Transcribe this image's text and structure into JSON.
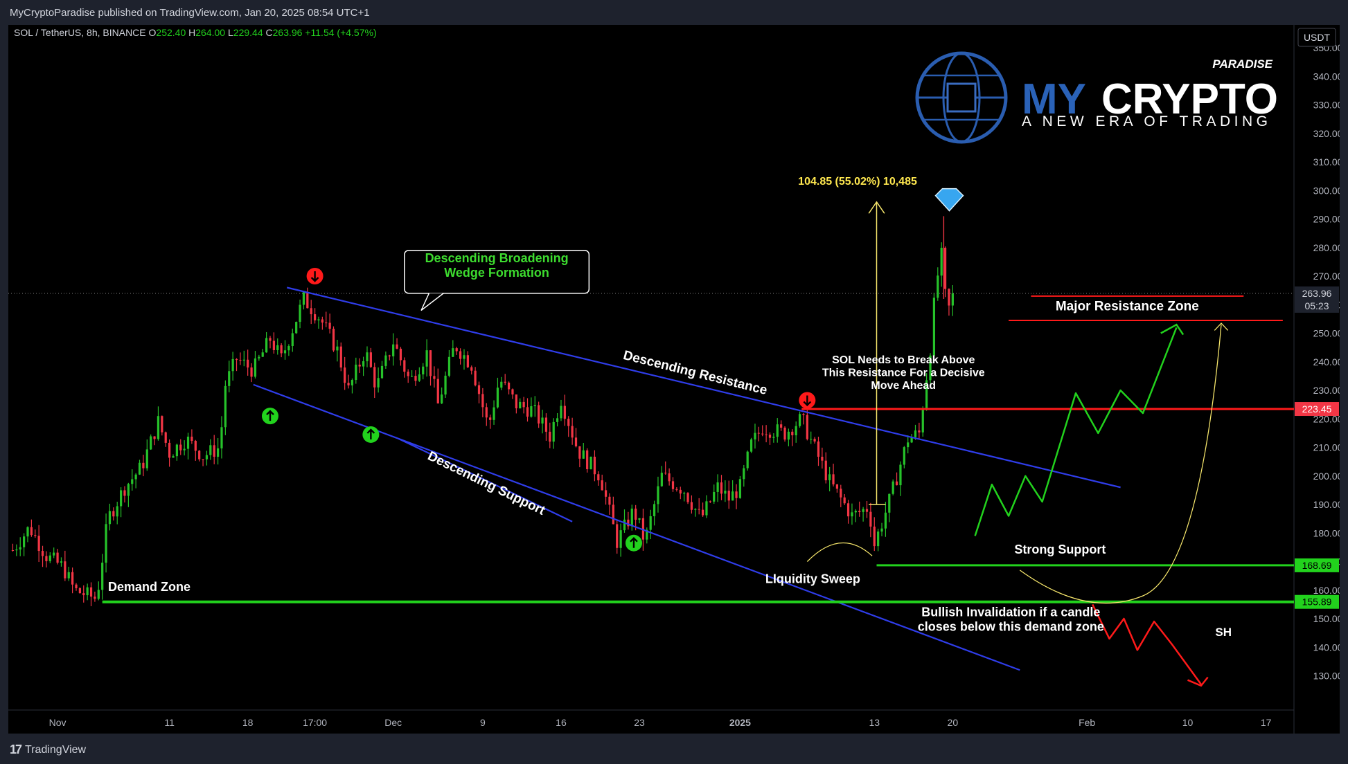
{
  "header": {
    "published": "MyCryptoParadise published on TradingView.com, Jan 20, 2025 08:54 UTC+1"
  },
  "footer": {
    "brand": "TradingView"
  },
  "symbol": {
    "name": "SOL / TetherUS, 8h, BINANCE",
    "o_label": "O",
    "o_value": "252.40",
    "h_label": "H",
    "h_value": "264.00",
    "l_label": "L",
    "l_value": "229.44",
    "c_label": "C",
    "c_value": "263.96",
    "change": "+11.54 (+4.57%)"
  },
  "logo": {
    "top": "PARADISE",
    "brand_a": "MY",
    "brand_b": "CRYPTO",
    "tagline": "A NEW ERA OF TRADING"
  },
  "currency": "USDT",
  "price_tags": {
    "current": "263.96",
    "countdown": "05:23",
    "resistance": "223.45",
    "support": "168.69",
    "demand": "155.89"
  },
  "annotations": {
    "wedge_line1": "Descending Broadening",
    "wedge_line2": "Wedge Formation",
    "resistance_label": "Descending Resistance",
    "support_label": "Descending Support",
    "measure": "104.85 (55.02%) 10,485",
    "major_zone": "Major Resistance Zone",
    "sol_line1": "SOL Needs to Break Above",
    "sol_line2": "This Resistance For a Decisive",
    "sol_line3": "Move Ahead",
    "strong_support": "Strong Support",
    "liquidity": "LIquidity Sweep",
    "demand_zone": "Demand Zone",
    "invalid_line1": "Bullish Invalidation if a candle",
    "invalid_line2": "closes below this demand zone",
    "sh": "SH"
  },
  "chart_data": {
    "type": "candlestick",
    "title": "SOL / TetherUS, 8h, BINANCE",
    "y_ticks": [
      130,
      140,
      150,
      160,
      170,
      180,
      190,
      200,
      210,
      220,
      230,
      240,
      250,
      260,
      270,
      280,
      290,
      300,
      310,
      320,
      330,
      340,
      350
    ],
    "y_tick_labels": [
      "130.00",
      "140.00",
      "150.00",
      "160.00",
      "170.00",
      "180.00",
      "190.00",
      "200.00",
      "210.00",
      "220.00",
      "230.00",
      "240.00",
      "250.00",
      "260.00",
      "270.00",
      "280.00",
      "290.00",
      "300.00",
      "310.00",
      "320.00",
      "330.00",
      "340.00",
      "350.00"
    ],
    "ylim": [
      118,
      358
    ],
    "x_ticks": [
      {
        "label": "Nov",
        "x": 0.0
      },
      {
        "label": "11",
        "x": 10.0
      },
      {
        "label": "18",
        "x": 17.0
      },
      {
        "label": "17:00",
        "x": 23.0
      },
      {
        "label": "Dec",
        "x": 30.0
      },
      {
        "label": "9",
        "x": 38.0
      },
      {
        "label": "16",
        "x": 45.0
      },
      {
        "label": "23",
        "x": 52.0
      },
      {
        "label": "2025",
        "x": 61.0
      },
      {
        "label": "13",
        "x": 73.0
      },
      {
        "label": "20",
        "x": 80.0
      },
      {
        "label": "Feb",
        "x": 92.0
      },
      {
        "label": "10",
        "x": 101.0
      },
      {
        "label": "17",
        "x": 108.0
      }
    ],
    "xlim": [
      -4.4,
      110.5
    ],
    "ohlc_path": [
      [
        -4.0,
        174
      ],
      [
        -2.5,
        182
      ],
      [
        -1.0,
        172
      ],
      [
        0.5,
        168
      ],
      [
        1.5,
        160
      ],
      [
        3.5,
        157
      ],
      [
        4.5,
        185
      ],
      [
        6.0,
        196
      ],
      [
        7.5,
        203
      ],
      [
        9.0,
        219
      ],
      [
        10.0,
        208
      ],
      [
        11.5,
        213
      ],
      [
        13.0,
        207
      ],
      [
        14.5,
        210
      ],
      [
        15.0,
        232
      ],
      [
        16.0,
        241
      ],
      [
        17.5,
        237
      ],
      [
        19.0,
        248
      ],
      [
        20.0,
        241
      ],
      [
        22.0,
        262
      ],
      [
        23.5,
        255
      ],
      [
        25.0,
        244
      ],
      [
        26.0,
        230
      ],
      [
        27.5,
        244
      ],
      [
        28.5,
        231
      ],
      [
        30.0,
        247
      ],
      [
        31.5,
        233
      ],
      [
        33.0,
        243
      ],
      [
        34.0,
        225
      ],
      [
        35.5,
        246
      ],
      [
        37.0,
        239
      ],
      [
        38.5,
        217
      ],
      [
        39.5,
        234
      ],
      [
        41.0,
        225
      ],
      [
        42.5,
        223
      ],
      [
        44.0,
        214
      ],
      [
        45.0,
        227
      ],
      [
        46.5,
        209
      ],
      [
        48.5,
        200
      ],
      [
        50.0,
        177
      ],
      [
        51.5,
        188
      ],
      [
        52.5,
        177
      ],
      [
        54.0,
        200
      ],
      [
        56.0,
        195
      ],
      [
        57.5,
        185
      ],
      [
        59.0,
        196
      ],
      [
        60.0,
        192
      ],
      [
        61.0,
        196
      ],
      [
        62.0,
        211
      ],
      [
        63.0,
        217
      ],
      [
        65.0,
        215
      ],
      [
        66.5,
        220
      ],
      [
        67.5,
        211
      ],
      [
        69.0,
        198
      ],
      [
        71.0,
        186
      ],
      [
        72.5,
        189
      ],
      [
        73.0,
        176
      ],
      [
        74.5,
        193
      ],
      [
        76.0,
        213
      ],
      [
        77.0,
        215
      ],
      [
        78.0,
        245
      ],
      [
        78.5,
        267
      ],
      [
        79.0,
        277
      ],
      [
        79.5,
        256
      ],
      [
        80.0,
        263.96
      ]
    ]
  }
}
